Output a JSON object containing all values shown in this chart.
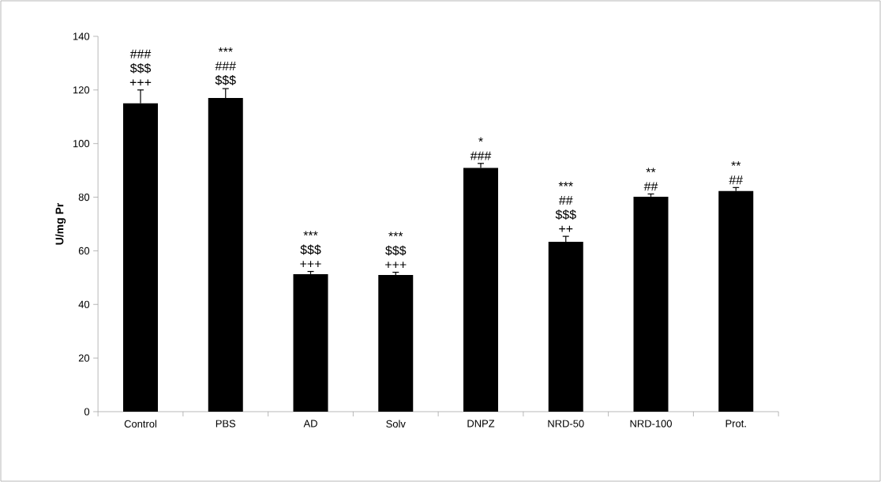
{
  "chart_data": {
    "type": "bar",
    "ylabel": "U/mg Pr",
    "categories": [
      "Control",
      "PBS",
      "AD",
      "Solv",
      "DNPZ",
      "NRD-50",
      "NRD-100",
      "Prot."
    ],
    "values": [
      115,
      117,
      51.3,
      51,
      90.9,
      63.4,
      80.2,
      82.3
    ],
    "errors": [
      5,
      3.5,
      1,
      1,
      1.7,
      2,
      1,
      1.3
    ],
    "color": "#000000",
    "ylim": [
      0,
      140
    ],
    "yticks": [
      0,
      20,
      40,
      60,
      80,
      100,
      120,
      140
    ],
    "grid": false,
    "annotations": [
      "### $$$ +++",
      "*** ### $$$",
      "*** $$$ +++",
      "*** $$$ +++",
      "* ###",
      "*** ## $$$ ++",
      "** ##",
      "** ##"
    ]
  }
}
